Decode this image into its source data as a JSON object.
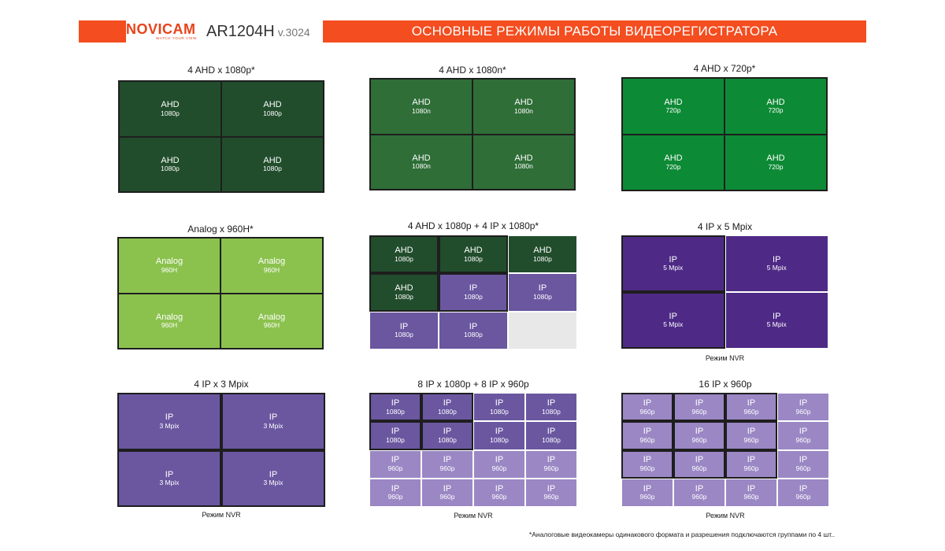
{
  "header": {
    "logo": "NOVICAM",
    "logo_tagline": "WATCH YOUR VIEW",
    "model": "AR1204H",
    "version": "v.3024",
    "title": "ОСНОВНЫЕ РЕЖИМЫ РАБОТЫ ВИДЕОРЕГИСТРАТОРА"
  },
  "colors": {
    "accent": "#f44d1f",
    "ahd_dark": "#214d2c",
    "ahd_mid": "#2f6e37",
    "ahd_bright": "#0d8a35",
    "analog": "#8bc24e",
    "ip_dark": "#4e2a86",
    "ip_mid": "#6a57a0",
    "ip_light": "#9a87c4",
    "empty": "#e8e8e8"
  },
  "panels": [
    {
      "id": "ahd1080p",
      "title": "4 AHD x 1080p*",
      "cols": 2,
      "rows": 2,
      "cells": [
        {
          "l1": "AHD",
          "l2": "1080p",
          "c": "ahd_dark"
        },
        {
          "l1": "AHD",
          "l2": "1080p",
          "c": "ahd_dark"
        },
        {
          "l1": "AHD",
          "l2": "1080p",
          "c": "ahd_dark"
        },
        {
          "l1": "AHD",
          "l2": "1080p",
          "c": "ahd_dark"
        }
      ]
    },
    {
      "id": "ahd1080n",
      "title": "4 AHD x 1080n*",
      "cols": 2,
      "rows": 2,
      "cells": [
        {
          "l1": "AHD",
          "l2": "1080n",
          "c": "ahd_mid"
        },
        {
          "l1": "AHD",
          "l2": "1080n",
          "c": "ahd_mid"
        },
        {
          "l1": "AHD",
          "l2": "1080n",
          "c": "ahd_mid"
        },
        {
          "l1": "AHD",
          "l2": "1080n",
          "c": "ahd_mid"
        }
      ]
    },
    {
      "id": "ahd720p",
      "title": "4 AHD x 720p*",
      "cols": 2,
      "rows": 2,
      "cells": [
        {
          "l1": "AHD",
          "l2": "720p",
          "c": "ahd_bright"
        },
        {
          "l1": "AHD",
          "l2": "720p",
          "c": "ahd_bright"
        },
        {
          "l1": "AHD",
          "l2": "720p",
          "c": "ahd_bright"
        },
        {
          "l1": "AHD",
          "l2": "720p",
          "c": "ahd_bright"
        }
      ]
    },
    {
      "id": "analog960h",
      "title": "Analog x 960H*",
      "cols": 2,
      "rows": 2,
      "cells": [
        {
          "l1": "Analog",
          "l2": "960H",
          "c": "analog"
        },
        {
          "l1": "Analog",
          "l2": "960H",
          "c": "analog"
        },
        {
          "l1": "Analog",
          "l2": "960H",
          "c": "analog"
        },
        {
          "l1": "Analog",
          "l2": "960H",
          "c": "analog"
        }
      ]
    },
    {
      "id": "hybrid",
      "title": "4 AHD x 1080p + 4 IP x 1080p*",
      "cols": 3,
      "rows": 3,
      "cells": [
        {
          "l1": "AHD",
          "l2": "1080p",
          "c": "ahd_dark"
        },
        {
          "l1": "AHD",
          "l2": "1080p",
          "c": "ahd_dark"
        },
        {
          "l1": "AHD",
          "l2": "1080p",
          "c": "ahd_dark"
        },
        {
          "l1": "AHD",
          "l2": "1080p",
          "c": "ahd_dark"
        },
        {
          "l1": "IP",
          "l2": "1080p",
          "c": "ip_mid"
        },
        {
          "l1": "IP",
          "l2": "1080p",
          "c": "ip_mid"
        },
        {
          "l1": "IP",
          "l2": "1080p",
          "c": "ip_mid"
        },
        {
          "l1": "IP",
          "l2": "1080p",
          "c": "ip_mid"
        },
        {
          "l1": "",
          "l2": "",
          "c": "empty"
        }
      ]
    },
    {
      "id": "ip5mpix",
      "title": "4 IP x 5 Mpix",
      "cols": 2,
      "rows": 2,
      "note": "Режим NVR",
      "cells": [
        {
          "l1": "IP",
          "l2": "5 Mpix",
          "c": "ip_dark"
        },
        {
          "l1": "IP",
          "l2": "5 Mpix",
          "c": "ip_dark"
        },
        {
          "l1": "IP",
          "l2": "5 Mpix",
          "c": "ip_dark"
        },
        {
          "l1": "IP",
          "l2": "5 Mpix",
          "c": "ip_dark"
        }
      ]
    },
    {
      "id": "ip3mpix",
      "title": "4 IP x 3 Mpix",
      "cols": 2,
      "rows": 2,
      "note": "Режим NVR",
      "cells": [
        {
          "l1": "IP",
          "l2": "3 Mpix",
          "c": "ip_mid"
        },
        {
          "l1": "IP",
          "l2": "3 Mpix",
          "c": "ip_mid"
        },
        {
          "l1": "IP",
          "l2": "3 Mpix",
          "c": "ip_mid"
        },
        {
          "l1": "IP",
          "l2": "3 Mpix",
          "c": "ip_mid"
        }
      ]
    },
    {
      "id": "ip8x8",
      "title": "8 IP x 1080p + 8 IP x 960p",
      "cols": 4,
      "rows": 4,
      "note": "Режим NVR",
      "cells": [
        {
          "l1": "IP",
          "l2": "1080p",
          "c": "ip_mid"
        },
        {
          "l1": "IP",
          "l2": "1080p",
          "c": "ip_mid"
        },
        {
          "l1": "IP",
          "l2": "1080p",
          "c": "ip_mid"
        },
        {
          "l1": "IP",
          "l2": "1080p",
          "c": "ip_mid"
        },
        {
          "l1": "IP",
          "l2": "1080p",
          "c": "ip_mid"
        },
        {
          "l1": "IP",
          "l2": "1080p",
          "c": "ip_mid"
        },
        {
          "l1": "IP",
          "l2": "1080p",
          "c": "ip_mid"
        },
        {
          "l1": "IP",
          "l2": "1080p",
          "c": "ip_mid"
        },
        {
          "l1": "IP",
          "l2": "960p",
          "c": "ip_light"
        },
        {
          "l1": "IP",
          "l2": "960p",
          "c": "ip_light"
        },
        {
          "l1": "IP",
          "l2": "960p",
          "c": "ip_light"
        },
        {
          "l1": "IP",
          "l2": "960p",
          "c": "ip_light"
        },
        {
          "l1": "IP",
          "l2": "960p",
          "c": "ip_light"
        },
        {
          "l1": "IP",
          "l2": "960p",
          "c": "ip_light"
        },
        {
          "l1": "IP",
          "l2": "960p",
          "c": "ip_light"
        },
        {
          "l1": "IP",
          "l2": "960p",
          "c": "ip_light"
        }
      ]
    },
    {
      "id": "ip16",
      "title": "16 IP x 960p",
      "cols": 4,
      "rows": 4,
      "note": "Режим NVR",
      "cells": [
        {
          "l1": "IP",
          "l2": "960p",
          "c": "ip_light"
        },
        {
          "l1": "IP",
          "l2": "960p",
          "c": "ip_light"
        },
        {
          "l1": "IP",
          "l2": "960p",
          "c": "ip_light"
        },
        {
          "l1": "IP",
          "l2": "960p",
          "c": "ip_light"
        },
        {
          "l1": "IP",
          "l2": "960p",
          "c": "ip_light"
        },
        {
          "l1": "IP",
          "l2": "960p",
          "c": "ip_light"
        },
        {
          "l1": "IP",
          "l2": "960p",
          "c": "ip_light"
        },
        {
          "l1": "IP",
          "l2": "960p",
          "c": "ip_light"
        },
        {
          "l1": "IP",
          "l2": "960p",
          "c": "ip_light"
        },
        {
          "l1": "IP",
          "l2": "960p",
          "c": "ip_light"
        },
        {
          "l1": "IP",
          "l2": "960p",
          "c": "ip_light"
        },
        {
          "l1": "IP",
          "l2": "960p",
          "c": "ip_light"
        },
        {
          "l1": "IP",
          "l2": "960p",
          "c": "ip_light"
        },
        {
          "l1": "IP",
          "l2": "960p",
          "c": "ip_light"
        },
        {
          "l1": "IP",
          "l2": "960p",
          "c": "ip_light"
        },
        {
          "l1": "IP",
          "l2": "960p",
          "c": "ip_light"
        }
      ]
    }
  ],
  "footnote": "*Аналоговые видеокамеры одинакового формата и разрешения подключаются группами по 4 шт.."
}
